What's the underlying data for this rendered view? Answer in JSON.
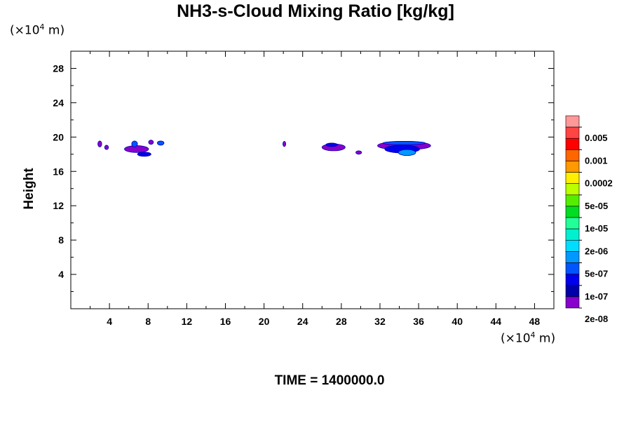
{
  "chart_data": {
    "type": "heatmap",
    "title": "NH3-s-Cloud Mixing Ratio [kg/kg]",
    "ylabel": "Height",
    "xlabel": "",
    "x_unit": {
      "prefix": "(×10",
      "exp": "4",
      "suffix": " m)"
    },
    "y_unit": {
      "prefix": "(×10",
      "exp": "4",
      "suffix": " m)"
    },
    "xlim": [
      0,
      50
    ],
    "ylim": [
      0,
      30
    ],
    "x_ticks": [
      4,
      8,
      12,
      16,
      20,
      24,
      28,
      32,
      36,
      40,
      44,
      48
    ],
    "y_ticks": [
      4,
      8,
      12,
      16,
      20,
      24,
      28
    ],
    "footer": "TIME = 1400000.0",
    "colorbar": {
      "colors": [
        "#ff9999",
        "#ff4444",
        "#ff0000",
        "#ff6600",
        "#ff9900",
        "#ffee00",
        "#bbff00",
        "#55ee00",
        "#00dd22",
        "#22ff99",
        "#00f0d0",
        "#00ddff",
        "#0099ff",
        "#0055ff",
        "#0000ee",
        "#0000aa",
        "#8800cc"
      ],
      "labels": [
        "0.005",
        "0.001",
        "0.0002",
        "5e-05",
        "1e-05",
        "2e-06",
        "5e-07",
        "1e-07",
        "2e-08"
      ]
    },
    "cloud_patches": [
      {
        "x": 3.0,
        "y": 19.2,
        "w": 0.4,
        "h": 0.7,
        "level": "1e-07"
      },
      {
        "x": 3.7,
        "y": 18.8,
        "w": 0.4,
        "h": 0.5,
        "level": "1e-07"
      },
      {
        "x": 6.8,
        "y": 18.6,
        "w": 2.5,
        "h": 0.8,
        "level": "1e-07"
      },
      {
        "x": 7.6,
        "y": 18.0,
        "w": 1.4,
        "h": 0.5,
        "level": "5e-07"
      },
      {
        "x": 6.6,
        "y": 19.2,
        "w": 0.6,
        "h": 0.7,
        "level": "2e-08"
      },
      {
        "x": 8.3,
        "y": 19.4,
        "w": 0.5,
        "h": 0.5,
        "level": "1e-07"
      },
      {
        "x": 9.3,
        "y": 19.3,
        "w": 0.7,
        "h": 0.5,
        "level": "2e-08"
      },
      {
        "x": 22.1,
        "y": 19.2,
        "w": 0.3,
        "h": 0.6,
        "level": "1e-07"
      },
      {
        "x": 27.2,
        "y": 18.8,
        "w": 2.4,
        "h": 0.8,
        "level": "1e-07"
      },
      {
        "x": 27.0,
        "y": 19.1,
        "w": 1.2,
        "h": 0.4,
        "level": "5e-07"
      },
      {
        "x": 29.8,
        "y": 18.2,
        "w": 0.6,
        "h": 0.4,
        "level": "1e-07"
      },
      {
        "x": 34.5,
        "y": 19.0,
        "w": 5.5,
        "h": 1.0,
        "level": "1e-07"
      },
      {
        "x": 34.3,
        "y": 18.6,
        "w": 3.6,
        "h": 0.9,
        "level": "5e-07"
      },
      {
        "x": 34.8,
        "y": 18.2,
        "w": 1.8,
        "h": 0.7,
        "level": "2e-06"
      },
      {
        "x": 34.5,
        "y": 19.3,
        "w": 4.4,
        "h": 0.4,
        "level": "2e-08"
      }
    ]
  }
}
